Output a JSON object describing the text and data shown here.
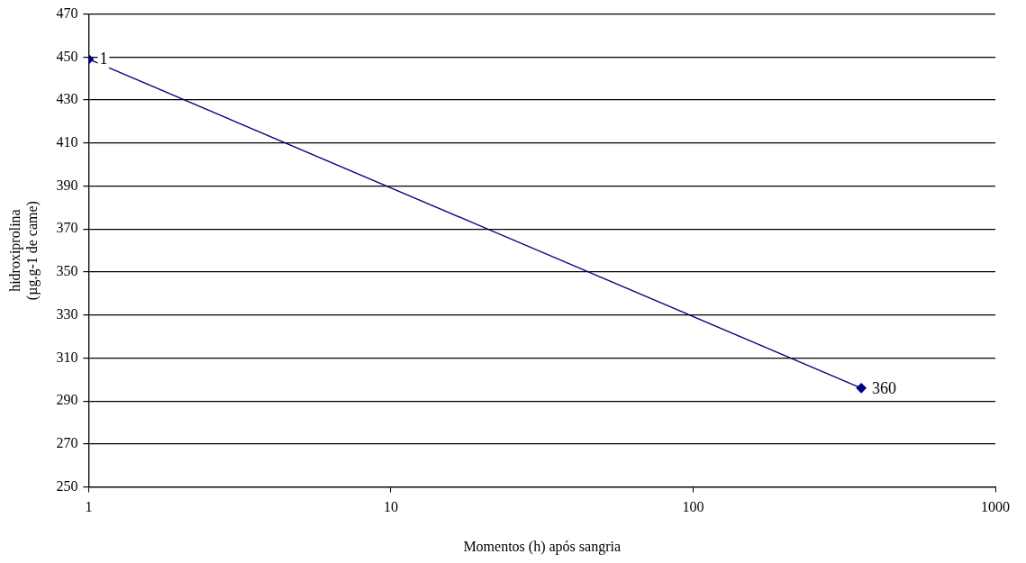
{
  "chart_data": {
    "type": "line",
    "xlabel": "Momentos (h) após sangria",
    "ylabel": "hidroxiprolina\n(µg.g-1 de came)",
    "x": [
      1,
      360
    ],
    "series": [
      {
        "color": "#000080",
        "values": [
          449,
          296
        ]
      }
    ],
    "xlim": [
      1,
      1000
    ],
    "xticks": [
      1,
      10,
      100,
      1000
    ],
    "ylim": [
      250,
      470
    ],
    "yticks": [
      250,
      270,
      290,
      310,
      330,
      350,
      370,
      390,
      410,
      430,
      450,
      470
    ],
    "log": "x",
    "grid": "y",
    "legend": false,
    "marker": "diamond",
    "line_style": "solid",
    "annotations": [
      {
        "text": "1",
        "x": 1,
        "y": 449
      },
      {
        "text": "360",
        "x": 360,
        "y": 296
      }
    ]
  }
}
